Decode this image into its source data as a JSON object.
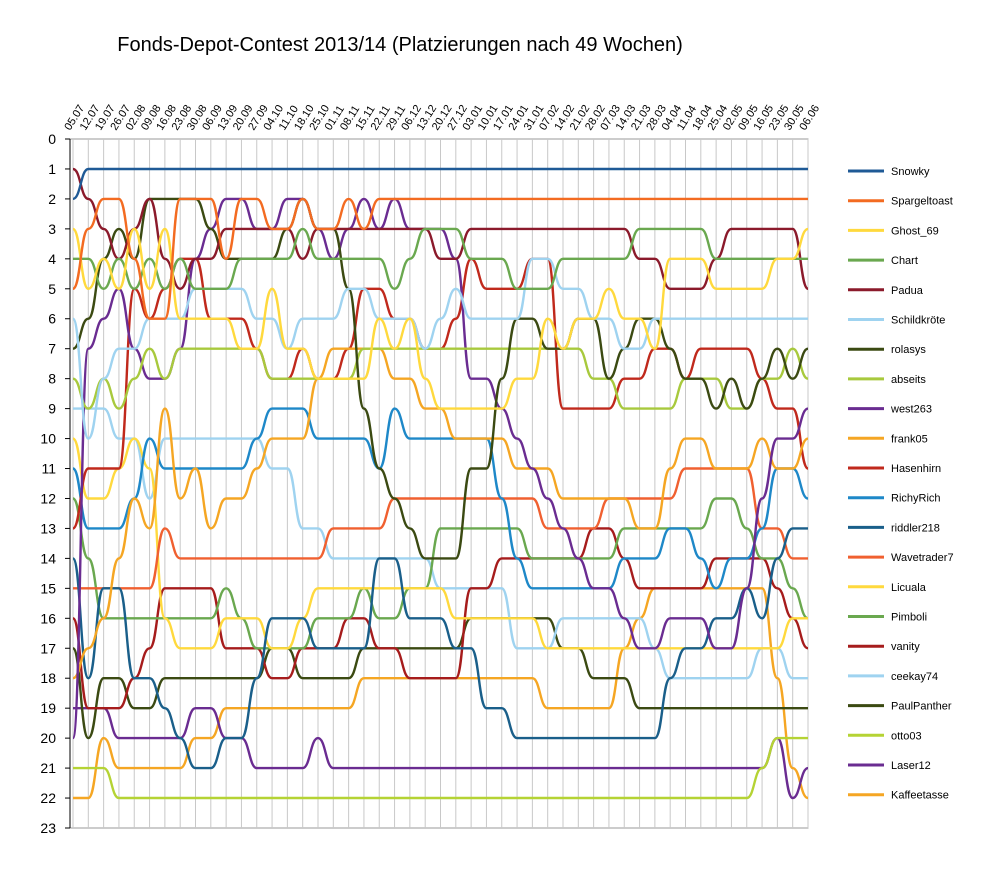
{
  "chart_data": {
    "type": "line",
    "title": "Fonds-Depot-Contest 2013/14 (Platzierungen nach 49 Wochen)",
    "xlabel": "",
    "ylabel": "",
    "x": [
      "05.07",
      "12.07",
      "19.07",
      "26.07",
      "02.08",
      "09.08",
      "16.08",
      "23.08",
      "30.08",
      "06.09",
      "13.09",
      "20.09",
      "27.09",
      "04.10",
      "11.10",
      "18.10",
      "25.10",
      "01.11",
      "08.11",
      "15.11",
      "22.11",
      "29.11",
      "06.12",
      "13.12",
      "20.12",
      "27.12",
      "03.01",
      "10.01",
      "17.01",
      "24.01",
      "31.01",
      "07.02",
      "14.02",
      "21.02",
      "28.02",
      "07.03",
      "14.03",
      "21.03",
      "28.03",
      "04.04",
      "11.04",
      "18.04",
      "25.04",
      "02.05",
      "09.05",
      "16.05",
      "23.05",
      "30.05",
      "06.06"
    ],
    "ylim": [
      0,
      23
    ],
    "y_reversed": true,
    "y_ticks": [
      0,
      1,
      2,
      3,
      4,
      5,
      6,
      7,
      8,
      9,
      10,
      11,
      12,
      13,
      14,
      15,
      16,
      17,
      18,
      19,
      20,
      21,
      22,
      23
    ],
    "grid_vertical": true,
    "grid_horizontal": false,
    "legend_position": "right",
    "series": [
      {
        "name": "Snowky",
        "color": "#1f5a96",
        "values": [
          2,
          1,
          1,
          1,
          1,
          1,
          1,
          1,
          1,
          1,
          1,
          1,
          1,
          1,
          1,
          1,
          1,
          1,
          1,
          1,
          1,
          1,
          1,
          1,
          1,
          1,
          1,
          1,
          1,
          1,
          1,
          1,
          1,
          1,
          1,
          1,
          1,
          1,
          1,
          1,
          1,
          1,
          1,
          1,
          1,
          1,
          1,
          1,
          1
        ]
      },
      {
        "name": "Spargeltoast",
        "color": "#f36b21",
        "values": [
          5,
          3,
          2,
          2,
          4,
          6,
          6,
          2,
          2,
          2,
          4,
          2,
          2,
          3,
          3,
          2,
          3,
          3,
          2,
          3,
          2,
          2,
          2,
          2,
          2,
          2,
          2,
          2,
          2,
          2,
          2,
          2,
          2,
          2,
          2,
          2,
          2,
          2,
          2,
          2,
          2,
          2,
          2,
          2,
          2,
          2,
          2,
          2,
          2
        ]
      },
      {
        "name": "Ghost_69",
        "color": "#ffd93d",
        "values": [
          3,
          5,
          4,
          5,
          3,
          5,
          3,
          6,
          6,
          6,
          6,
          7,
          7,
          5,
          7,
          7,
          8,
          8,
          8,
          8,
          6,
          7,
          6,
          8,
          9,
          9,
          9,
          9,
          9,
          8,
          8,
          6,
          7,
          6,
          6,
          5,
          6,
          6,
          7,
          4,
          4,
          4,
          5,
          5,
          5,
          5,
          4,
          4,
          3
        ]
      },
      {
        "name": "Chart",
        "color": "#6aa84f",
        "values": [
          4,
          4,
          5,
          4,
          5,
          4,
          5,
          4,
          5,
          5,
          5,
          4,
          4,
          4,
          4,
          3,
          4,
          4,
          4,
          4,
          4,
          5,
          4,
          3,
          3,
          3,
          4,
          4,
          4,
          5,
          5,
          5,
          4,
          4,
          4,
          4,
          4,
          3,
          3,
          3,
          3,
          3,
          4,
          4,
          4,
          4,
          4,
          4,
          4
        ]
      },
      {
        "name": "Padua",
        "color": "#8b1a2b",
        "values": [
          1,
          2,
          3,
          4,
          3,
          2,
          4,
          5,
          4,
          4,
          3,
          3,
          3,
          3,
          3,
          4,
          3,
          3,
          3,
          3,
          3,
          3,
          3,
          3,
          4,
          4,
          3,
          3,
          3,
          3,
          3,
          3,
          3,
          3,
          3,
          3,
          3,
          4,
          4,
          5,
          5,
          5,
          4,
          3,
          3,
          3,
          3,
          3,
          5
        ]
      },
      {
        "name": "Schildkröte",
        "color": "#9fd3f0",
        "values": [
          6,
          10,
          8,
          7,
          7,
          6,
          6,
          6,
          5,
          5,
          5,
          5,
          6,
          6,
          7,
          6,
          6,
          6,
          5,
          5,
          6,
          6,
          6,
          7,
          6,
          5,
          6,
          6,
          6,
          6,
          4,
          4,
          5,
          5,
          6,
          6,
          7,
          7,
          6,
          6,
          6,
          6,
          6,
          6,
          6,
          6,
          6,
          6,
          6
        ]
      },
      {
        "name": "rolasys",
        "color": "#3b4a12",
        "values": [
          7,
          6,
          4,
          3,
          4,
          2,
          2,
          2,
          2,
          3,
          4,
          4,
          4,
          4,
          3,
          2,
          3,
          3,
          5,
          9,
          11,
          12,
          13,
          14,
          14,
          14,
          11,
          11,
          8,
          6,
          6,
          7,
          7,
          6,
          6,
          8,
          7,
          6,
          6,
          7,
          8,
          8,
          9,
          8,
          9,
          8,
          7,
          8,
          7
        ]
      },
      {
        "name": "abseits",
        "color": "#a8c93d",
        "values": [
          8,
          9,
          8,
          9,
          8,
          7,
          8,
          7,
          7,
          7,
          7,
          7,
          7,
          8,
          8,
          8,
          8,
          8,
          8,
          7,
          7,
          7,
          7,
          7,
          7,
          7,
          7,
          7,
          7,
          7,
          7,
          7,
          7,
          7,
          8,
          8,
          9,
          9,
          9,
          9,
          8,
          8,
          8,
          9,
          9,
          8,
          8,
          7,
          8
        ]
      },
      {
        "name": "west263",
        "color": "#6a2c91",
        "values": [
          20,
          7,
          6,
          5,
          7,
          8,
          8,
          7,
          4,
          3,
          2,
          2,
          3,
          3,
          2,
          2,
          3,
          4,
          3,
          2,
          3,
          2,
          3,
          3,
          3,
          4,
          8,
          8,
          9,
          10,
          11,
          12,
          13,
          14,
          15,
          15,
          16,
          17,
          17,
          16,
          16,
          16,
          17,
          17,
          15,
          12,
          10,
          10,
          9
        ]
      },
      {
        "name": "frank05",
        "color": "#f5a623",
        "values": [
          18,
          17,
          16,
          14,
          12,
          13,
          9,
          12,
          11,
          13,
          12,
          12,
          11,
          10,
          10,
          10,
          8,
          7,
          7,
          7,
          7,
          8,
          8,
          9,
          9,
          10,
          10,
          10,
          10,
          11,
          11,
          11,
          12,
          12,
          12,
          12,
          12,
          13,
          13,
          11,
          10,
          10,
          11,
          11,
          11,
          10,
          11,
          11,
          10
        ]
      },
      {
        "name": "Hasenhirn",
        "color": "#c0291c",
        "values": [
          13,
          11,
          11,
          11,
          5,
          6,
          5,
          4,
          4,
          6,
          6,
          6,
          7,
          8,
          8,
          7,
          8,
          8,
          7,
          5,
          5,
          6,
          6,
          7,
          7,
          6,
          4,
          5,
          5,
          5,
          4,
          4,
          9,
          9,
          9,
          9,
          8,
          8,
          7,
          7,
          8,
          7,
          7,
          7,
          7,
          8,
          9,
          9,
          11
        ]
      },
      {
        "name": "RichyRich",
        "color": "#1e88c8",
        "values": [
          11,
          13,
          13,
          13,
          12,
          10,
          11,
          11,
          11,
          11,
          11,
          11,
          10,
          9,
          9,
          9,
          10,
          10,
          10,
          10,
          11,
          9,
          10,
          10,
          10,
          10,
          10,
          10,
          12,
          14,
          15,
          15,
          15,
          15,
          15,
          15,
          14,
          14,
          14,
          13,
          13,
          14,
          15,
          14,
          14,
          13,
          11,
          11,
          12
        ]
      },
      {
        "name": "riddler218",
        "color": "#1a5f8a",
        "values": [
          14,
          18,
          15,
          15,
          18,
          18,
          19,
          20,
          21,
          21,
          20,
          20,
          18,
          16,
          16,
          16,
          17,
          17,
          17,
          17,
          14,
          14,
          16,
          16,
          16,
          17,
          17,
          19,
          19,
          20,
          20,
          20,
          20,
          20,
          20,
          20,
          20,
          20,
          20,
          18,
          17,
          17,
          16,
          16,
          15,
          16,
          14,
          13,
          13
        ]
      },
      {
        "name": "Wavetrader7",
        "color": "#f06030",
        "values": [
          15,
          15,
          15,
          15,
          15,
          15,
          13,
          14,
          14,
          14,
          14,
          14,
          14,
          14,
          14,
          14,
          14,
          13,
          13,
          13,
          13,
          12,
          12,
          12,
          12,
          12,
          12,
          12,
          12,
          12,
          12,
          13,
          13,
          13,
          13,
          12,
          12,
          12,
          12,
          12,
          11,
          11,
          11,
          11,
          11,
          13,
          13,
          14,
          14
        ]
      },
      {
        "name": "Licuala",
        "color": "#ffd93d",
        "values": [
          10,
          12,
          12,
          11,
          10,
          11,
          16,
          17,
          17,
          17,
          16,
          16,
          16,
          17,
          17,
          16,
          15,
          15,
          15,
          15,
          15,
          15,
          15,
          15,
          15,
          16,
          16,
          16,
          16,
          16,
          16,
          17,
          17,
          17,
          17,
          17,
          17,
          17,
          17,
          17,
          17,
          17,
          17,
          17,
          17,
          17,
          17,
          16,
          16
        ]
      },
      {
        "name": "Pimboli",
        "color": "#6aa84f",
        "values": [
          12,
          14,
          16,
          16,
          16,
          16,
          16,
          16,
          16,
          16,
          15,
          16,
          17,
          17,
          17,
          17,
          16,
          16,
          16,
          15,
          16,
          16,
          15,
          15,
          13,
          13,
          13,
          13,
          13,
          13,
          14,
          14,
          14,
          14,
          14,
          14,
          13,
          13,
          13,
          13,
          13,
          13,
          12,
          12,
          13,
          14,
          14,
          15,
          16
        ]
      },
      {
        "name": "vanity",
        "color": "#a61c1c",
        "values": [
          16,
          19,
          19,
          19,
          18,
          17,
          15,
          15,
          15,
          15,
          17,
          17,
          17,
          18,
          18,
          17,
          17,
          17,
          16,
          16,
          17,
          17,
          18,
          18,
          18,
          18,
          15,
          15,
          14,
          14,
          14,
          14,
          14,
          14,
          13,
          13,
          14,
          15,
          15,
          15,
          15,
          15,
          14,
          14,
          14,
          14,
          15,
          16,
          17
        ]
      },
      {
        "name": "ceekay74",
        "color": "#9fd3f0",
        "values": [
          9,
          9,
          9,
          10,
          10,
          12,
          10,
          10,
          10,
          10,
          10,
          10,
          10,
          11,
          11,
          13,
          13,
          14,
          14,
          14,
          14,
          14,
          14,
          14,
          15,
          15,
          15,
          15,
          15,
          17,
          17,
          17,
          16,
          16,
          16,
          16,
          16,
          16,
          17,
          18,
          18,
          18,
          18,
          18,
          18,
          17,
          17,
          18,
          18
        ]
      },
      {
        "name": "PaulPanther",
        "color": "#3b4a12",
        "values": [
          17,
          20,
          18,
          18,
          19,
          19,
          18,
          18,
          18,
          18,
          18,
          18,
          18,
          17,
          17,
          18,
          18,
          18,
          18,
          17,
          17,
          17,
          17,
          17,
          17,
          17,
          16,
          16,
          16,
          16,
          16,
          16,
          17,
          17,
          18,
          18,
          18,
          19,
          19,
          19,
          19,
          19,
          19,
          19,
          19,
          19,
          19,
          19,
          19
        ]
      },
      {
        "name": "otto03",
        "color": "#b5d334",
        "values": [
          21,
          21,
          21,
          22,
          22,
          22,
          22,
          22,
          22,
          22,
          22,
          22,
          22,
          22,
          22,
          22,
          22,
          22,
          22,
          22,
          22,
          22,
          22,
          22,
          22,
          22,
          22,
          22,
          22,
          22,
          22,
          22,
          22,
          22,
          22,
          22,
          22,
          22,
          22,
          22,
          22,
          22,
          22,
          22,
          22,
          21,
          20,
          20,
          20
        ]
      },
      {
        "name": "Laser12",
        "color": "#6a2c91",
        "values": [
          19,
          19,
          19,
          20,
          20,
          20,
          20,
          20,
          19,
          19,
          20,
          20,
          21,
          21,
          21,
          21,
          20,
          21,
          21,
          21,
          21,
          21,
          21,
          21,
          21,
          21,
          21,
          21,
          21,
          21,
          21,
          21,
          21,
          21,
          21,
          21,
          21,
          21,
          21,
          21,
          21,
          21,
          21,
          21,
          21,
          21,
          20,
          22,
          21
        ]
      },
      {
        "name": "Kaffeetasse",
        "color": "#f5a623",
        "values": [
          22,
          22,
          20,
          21,
          21,
          21,
          21,
          21,
          20,
          20,
          19,
          19,
          19,
          19,
          19,
          19,
          19,
          19,
          19,
          18,
          18,
          18,
          18,
          18,
          18,
          18,
          18,
          18,
          18,
          18,
          18,
          19,
          19,
          19,
          19,
          19,
          17,
          16,
          15,
          15,
          15,
          15,
          15,
          15,
          15,
          15,
          18,
          21,
          22
        ]
      }
    ]
  }
}
